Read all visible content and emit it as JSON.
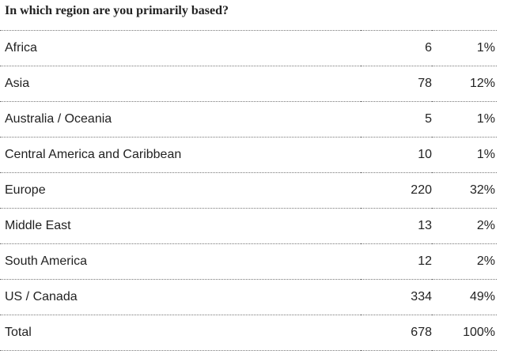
{
  "title": "In which region are you primarily based?",
  "table": {
    "rows": [
      [
        "Africa",
        6,
        "1%"
      ],
      [
        "Asia",
        78,
        "12%"
      ],
      [
        "Australia / Oceania",
        5,
        "1%"
      ],
      [
        "Central America and Caribbean",
        10,
        "1%"
      ],
      [
        "Europe",
        220,
        "32%"
      ],
      [
        "Middle East",
        13,
        "2%"
      ],
      [
        "South America",
        12,
        "2%"
      ],
      [
        "US / Canada",
        334,
        "49%"
      ],
      [
        "Total",
        678,
        "100%"
      ]
    ]
  }
}
